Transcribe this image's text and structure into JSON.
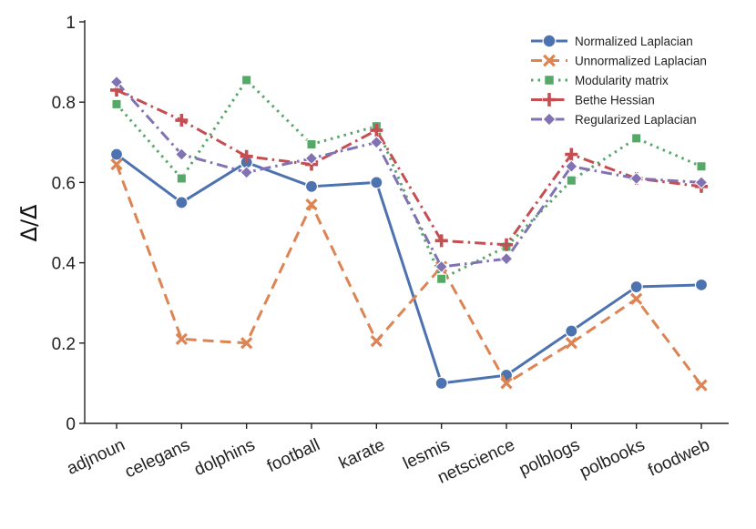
{
  "chart_data": {
    "type": "line",
    "ylabel": "Δ/Δ̄",
    "ylim": [
      0,
      1
    ],
    "yticks": [
      0,
      0.2,
      0.4,
      0.6,
      0.8,
      1
    ],
    "ytick_labels": [
      "0",
      "0.2",
      "0.4",
      "0.6",
      "0.8",
      "1"
    ],
    "categories": [
      "adjnoun",
      "celegans",
      "dolphins",
      "football",
      "karate",
      "lesmis",
      "netscience",
      "polblogs",
      "polbooks",
      "foodweb"
    ],
    "legend_position": "top-right",
    "grid": false,
    "series": [
      {
        "name": "Normalized Laplacian",
        "color": "#4c72b0",
        "marker": "circle",
        "dash": "solid",
        "values": [
          0.67,
          0.55,
          0.65,
          0.59,
          0.6,
          0.1,
          0.12,
          0.23,
          0.34,
          0.345
        ]
      },
      {
        "name": "Unnormalized Laplacian",
        "color": "#dd8452",
        "marker": "x",
        "dash": "dashed",
        "values": [
          0.645,
          0.21,
          0.2,
          0.545,
          0.205,
          0.39,
          0.1,
          0.2,
          0.31,
          0.095
        ]
      },
      {
        "name": "Modularity matrix",
        "color": "#55a868",
        "marker": "square",
        "dash": "dotted",
        "values": [
          0.795,
          0.61,
          0.855,
          0.695,
          0.74,
          0.36,
          0.44,
          0.605,
          0.71,
          0.64
        ]
      },
      {
        "name": "Bethe Hessian",
        "color": "#c44e52",
        "marker": "plus",
        "dash": "dashdot",
        "values": [
          0.83,
          0.755,
          0.665,
          0.645,
          0.73,
          0.455,
          0.445,
          0.67,
          0.61,
          0.59
        ]
      },
      {
        "name": "Regularized Laplacian",
        "color": "#8172b3",
        "marker": "diamond",
        "dash": "dashdot",
        "values": [
          0.85,
          0.67,
          0.625,
          0.66,
          0.7,
          0.39,
          0.41,
          0.64,
          0.61,
          0.6
        ]
      }
    ]
  }
}
